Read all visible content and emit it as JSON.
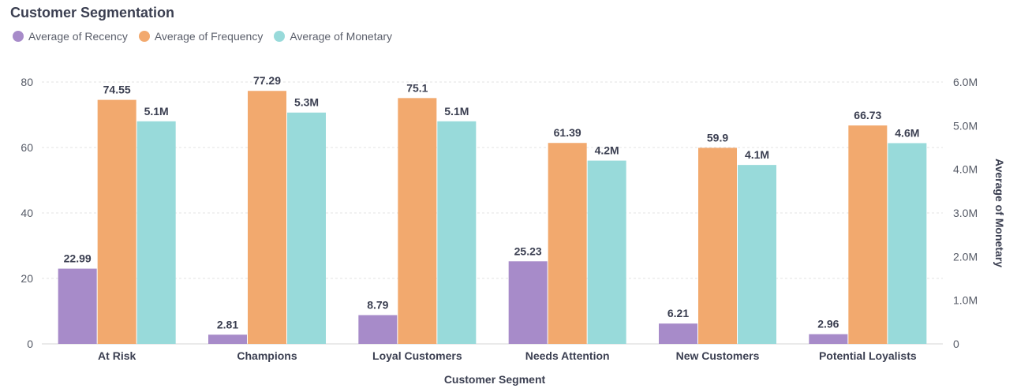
{
  "chart_data": {
    "type": "bar",
    "title": "Customer Segmentation",
    "xlabel": "Customer Segment",
    "ylabel": "",
    "y2label": "Average of Monetary",
    "categories": [
      "At Risk",
      "Champions",
      "Loyal Customers",
      "Needs Attention",
      "New Customers",
      "Potential Loyalists"
    ],
    "series": [
      {
        "name": "Average of Recency",
        "axis": "left",
        "color": "#a78bc9",
        "values": [
          22.99,
          2.81,
          8.79,
          25.23,
          6.21,
          2.96
        ],
        "labels": [
          "22.99",
          "2.81",
          "8.79",
          "25.23",
          "6.21",
          "2.96"
        ]
      },
      {
        "name": "Average of Frequency",
        "axis": "left",
        "color": "#f2a96e",
        "values": [
          74.55,
          77.29,
          75.1,
          61.39,
          59.9,
          66.73
        ],
        "labels": [
          "74.55",
          "77.29",
          "75.1",
          "61.39",
          "59.9",
          "66.73"
        ]
      },
      {
        "name": "Average of Monetary",
        "axis": "right",
        "color": "#98dada",
        "values": [
          5100000,
          5300000,
          5100000,
          4200000,
          4100000,
          4600000
        ],
        "labels": [
          "5.1M",
          "5.3M",
          "5.1M",
          "4.2M",
          "4.1M",
          "4.6M"
        ]
      }
    ],
    "ylim": [
      0,
      80
    ],
    "yticks": [
      "0",
      "20",
      "40",
      "60",
      "80"
    ],
    "y2lim": [
      0,
      6000000
    ],
    "y2ticks": [
      "0",
      "1.0M",
      "2.0M",
      "3.0M",
      "4.0M",
      "5.0M",
      "6.0M"
    ],
    "grid": true,
    "legend_position": "top-left"
  }
}
